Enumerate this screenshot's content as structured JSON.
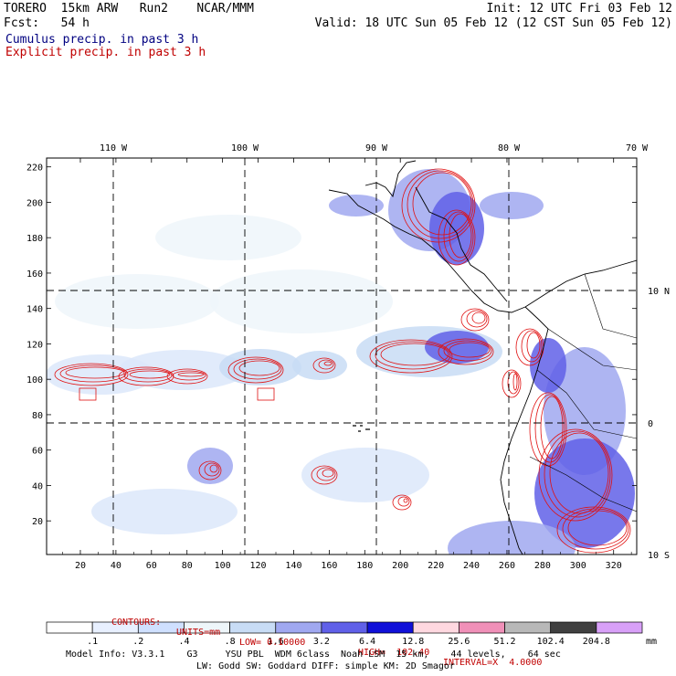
{
  "header": {
    "line1_left": "TORERO  15km ARW   Run2    NCAR/MMM",
    "line1_right": "Init: 12 UTC Fri 03 Feb 12",
    "line2_left": "Fcst:   54 h",
    "line2_right": "Valid: 18 UTC Sun 05 Feb 12 (12 CST Sun 05 Feb 12)",
    "cumulus_label": "Cumulus precip. in past 3 h",
    "explicit_label": "Explicit precip. in past 3 h",
    "cumulus_color": "#000080",
    "explicit_color": "#c00000"
  },
  "chart_data": {
    "type": "heatmap",
    "top_ticks": [
      "110 W",
      "100 W",
      "90 W",
      "80 W",
      "70 W"
    ],
    "right_ticks": [
      "10 N",
      "0",
      "10 S"
    ],
    "x_ticks": [
      20,
      40,
      60,
      80,
      100,
      120,
      140,
      160,
      180,
      200,
      220,
      240,
      260,
      280,
      300,
      320
    ],
    "y_ticks": [
      20,
      40,
      60,
      80,
      100,
      120,
      140,
      160,
      180,
      200,
      220
    ],
    "xlim": [
      1,
      333
    ],
    "ylim": [
      1,
      225
    ],
    "grid": true,
    "contours": {
      "label": "CONTOURS:",
      "units": "UNITS=mm",
      "low": "LOW= 0.10000",
      "high": "HIGH=  102.40",
      "interval": "INTERVAL=X  4.0000"
    },
    "colorbar": {
      "labels": [
        ".1",
        ".2",
        ".4",
        ".8",
        "1.6",
        "3.2",
        "6.4",
        "12.8",
        "25.6",
        "51.2",
        "102.4",
        "204.8"
      ],
      "unit": "mm",
      "colors": [
        "#ffffff",
        "#e8f0ff",
        "#cfe0ff",
        "#eef6fa",
        "#c8dcf5",
        "#a0a8f0",
        "#6060e8",
        "#1010d8",
        "#ffd8e0",
        "#f090b8",
        "#b8b8b8",
        "#404040",
        "#d8a0f8"
      ]
    }
  },
  "footer": {
    "line1": "Model Info: V3.3.1    G3     YSU PBL  WDM 6class  Noah LSM  15 km,    44 levels,    64 sec",
    "line2": "LW: Godd SW: Goddard DIFF: simple KM: 2D Smagor"
  }
}
